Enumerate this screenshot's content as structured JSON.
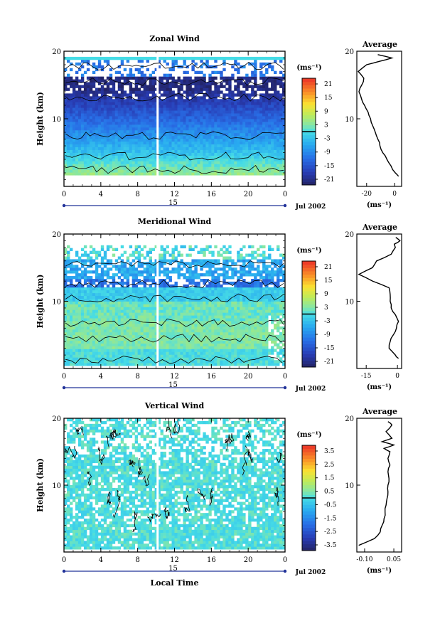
{
  "chart_data": [
    {
      "type": "heatmap",
      "title": "Zonal Wind",
      "ylabel": "Height (km)",
      "ylim": [
        0,
        20
      ],
      "xlim": [
        0,
        24
      ],
      "x_ticks": [
        "0",
        "4",
        "8",
        "12",
        "16",
        "20",
        "0"
      ],
      "y_ticks": [
        "10",
        "20"
      ],
      "date_marker": "15",
      "date_label": "Jul 2002",
      "colorbar": {
        "unit": "(ms⁻¹)",
        "ticks": [
          "21",
          "15",
          "9",
          "3",
          "-3",
          "-9",
          "-15",
          "-21"
        ],
        "range": [
          -24,
          24
        ]
      },
      "avg_panel": {
        "title": "Average",
        "unit": "(ms⁻¹)",
        "x_ticks": [
          "-20",
          "0"
        ],
        "y_ticks": [
          "10",
          "20"
        ],
        "xlim": [
          -27,
          5
        ],
        "profile_z": [
          1.5,
          2,
          3,
          4,
          5,
          6,
          7,
          8,
          9,
          10,
          11,
          12,
          13,
          14,
          15,
          16,
          17,
          18,
          18.5,
          19,
          19.5
        ],
        "profile_u": [
          2.8,
          0.5,
          -2.5,
          -5.5,
          -8.5,
          -10.5,
          -12,
          -13.8,
          -15.7,
          -17.2,
          -19,
          -21.5,
          -23.7,
          -25.5,
          -23.5,
          -22,
          -26,
          -20,
          -11,
          -2,
          -12
        ]
      }
    },
    {
      "type": "heatmap",
      "title": "Meridional Wind",
      "ylabel": "Height (km)",
      "ylim": [
        0,
        20
      ],
      "xlim": [
        0,
        24
      ],
      "x_ticks": [
        "0",
        "4",
        "8",
        "12",
        "16",
        "20",
        "0"
      ],
      "y_ticks": [
        "10",
        "20"
      ],
      "date_marker": "15",
      "date_label": "Jul 2002",
      "colorbar": {
        "unit": "(ms⁻¹)",
        "ticks": [
          "21",
          "15",
          "9",
          "3",
          "-3",
          "-9",
          "-15",
          "-21"
        ],
        "range": [
          -24,
          24
        ]
      },
      "avg_panel": {
        "title": "Average",
        "unit": "(ms⁻¹)",
        "x_ticks": [
          "-15",
          "0"
        ],
        "y_ticks": [
          "10",
          "20"
        ],
        "xlim": [
          -19.5,
          2
        ],
        "profile_z": [
          1.5,
          2,
          3,
          4,
          5,
          6,
          7,
          8,
          9,
          10,
          11,
          12,
          13,
          14,
          15,
          16,
          17,
          18,
          18.5,
          19,
          19.5
        ],
        "profile_v": [
          0.5,
          -1,
          -4,
          -3.5,
          -2,
          -0.5,
          0.5,
          -1,
          -3,
          -3.5,
          -3.5,
          -4,
          -12,
          -18.5,
          -12,
          -10,
          -3,
          -1,
          -1.5,
          1.2,
          -0.8
        ]
      }
    },
    {
      "type": "heatmap",
      "title": "Vertical Wind",
      "xlabel": "Local Time",
      "ylabel": "Height (km)",
      "ylim": [
        0,
        20
      ],
      "xlim": [
        0,
        24
      ],
      "x_ticks": [
        "0",
        "4",
        "8",
        "12",
        "16",
        "20",
        "0"
      ],
      "y_ticks": [
        "10",
        "20"
      ],
      "date_marker": "15",
      "date_label": "Jul 2002",
      "colorbar": {
        "unit": "(ms⁻¹)",
        "ticks": [
          "3.5",
          "2.5",
          "1.5",
          "0.5",
          "-0.5",
          "-1.5",
          "-2.5",
          "-3.5"
        ],
        "range": [
          -4,
          4
        ]
      },
      "avg_panel": {
        "title": "Average",
        "unit": "(ms⁻¹)",
        "x_ticks": [
          "-0.10",
          "0.05"
        ],
        "y_ticks": [
          "10",
          "20"
        ],
        "xlim": [
          -0.14,
          0.09
        ],
        "profile_z": [
          1,
          2,
          3,
          4,
          5,
          6,
          7,
          8,
          9,
          10,
          11,
          12,
          13,
          14,
          15,
          15.5,
          16,
          16.5,
          17,
          18,
          19,
          19.5
        ],
        "profile_w": [
          -0.13,
          -0.05,
          -0.02,
          -0.01,
          0,
          0.005,
          0.01,
          0.015,
          0.02,
          0.02,
          0.025,
          0.02,
          0.03,
          0.02,
          0.03,
          0.0,
          0.05,
          -0.01,
          0.04,
          0.01,
          0.04,
          0.02
        ]
      }
    }
  ]
}
